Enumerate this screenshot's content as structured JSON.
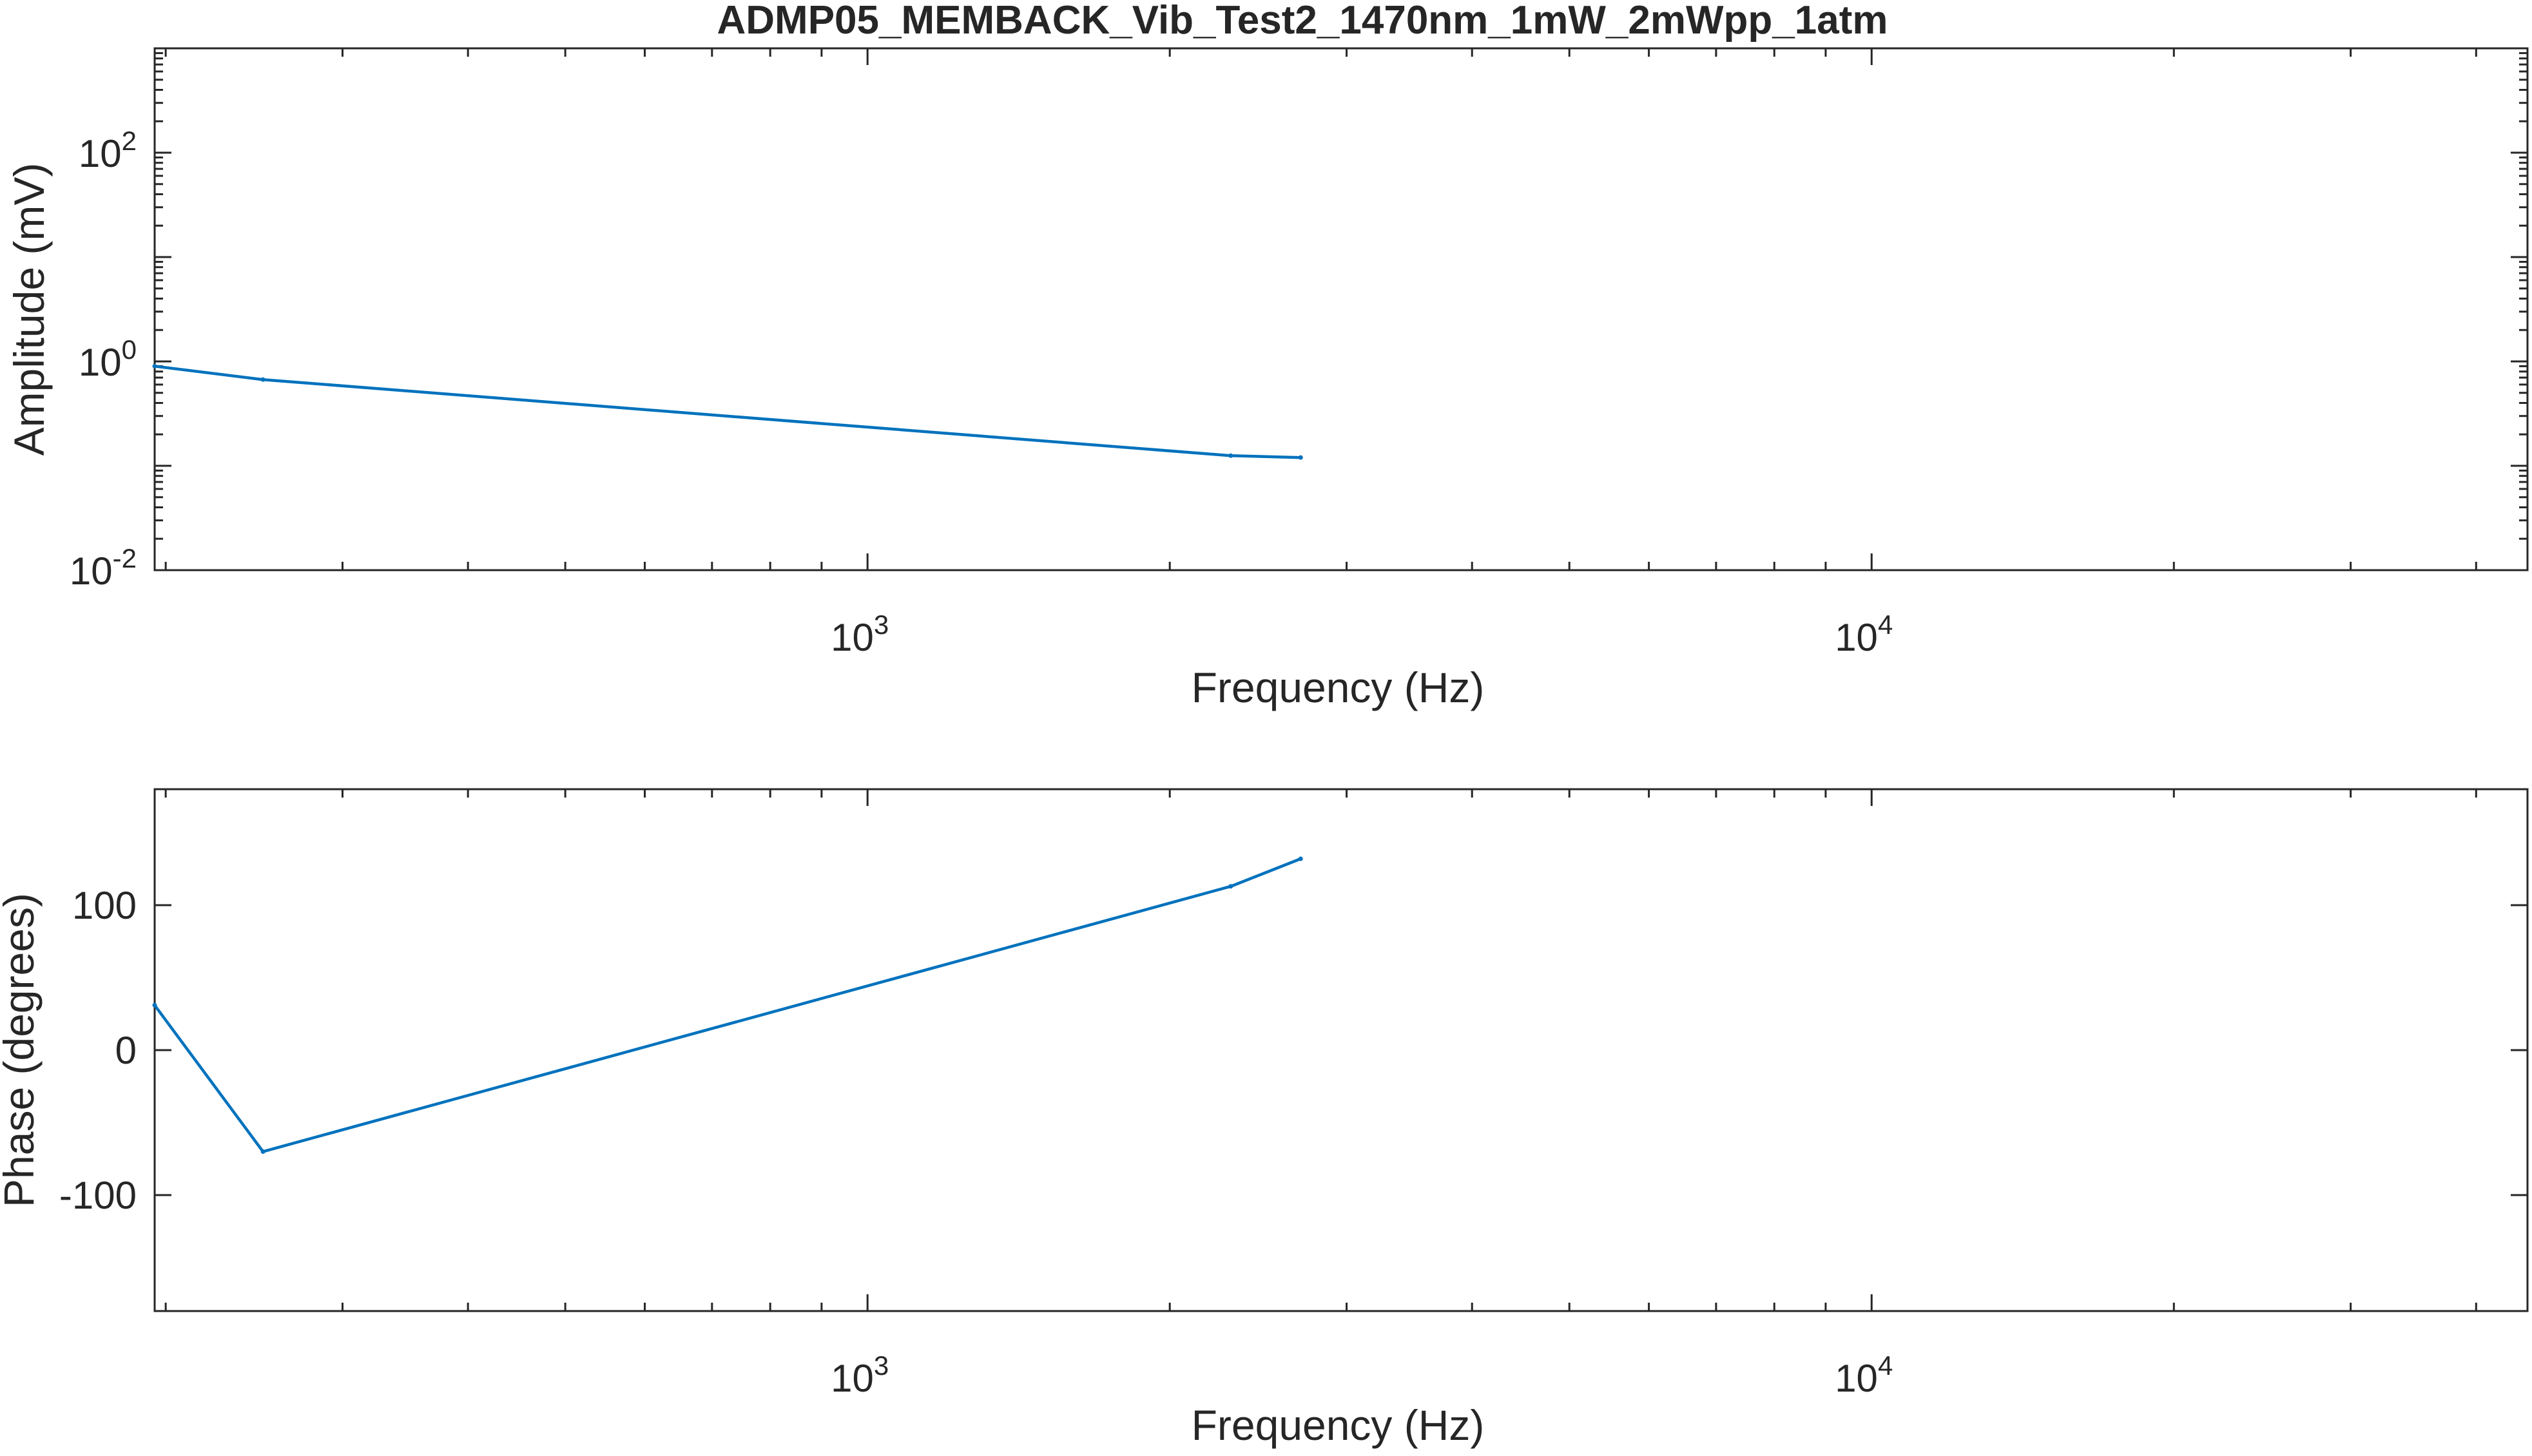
{
  "figure": {
    "title": "ADMP05_MEMBACK_Vib_Test2_1470nm_1mW_2mWpp_1atm"
  },
  "colors": {
    "series": "#0072BD",
    "axes": "#262626",
    "background": "#ffffff"
  },
  "chart_data": [
    {
      "type": "line",
      "name": "amplitude",
      "xlabel": "Frequency (Hz)",
      "ylabel": "Amplitude (mV)",
      "xscale": "log",
      "yscale": "log",
      "xlim": [
        195,
        45000
      ],
      "ylim": [
        0.01,
        1000
      ],
      "xticks": [
        {
          "value": 1000,
          "base": "10",
          "exp": "3"
        },
        {
          "value": 10000,
          "base": "10",
          "exp": "4"
        }
      ],
      "yticks": [
        {
          "value": 0.01,
          "base": "10",
          "exp": "-2"
        },
        {
          "value": 1,
          "base": "10",
          "exp": "0"
        },
        {
          "value": 100,
          "base": "10",
          "exp": "2"
        }
      ],
      "grid": false,
      "x": [
        195,
        250,
        2300,
        2700
      ],
      "y": [
        0.9,
        0.67,
        0.125,
        0.12
      ]
    },
    {
      "type": "line",
      "name": "phase",
      "xlabel": "Frequency (Hz)",
      "ylabel": "Phase (degrees)",
      "xscale": "log",
      "yscale": "linear",
      "xlim": [
        195,
        45000
      ],
      "ylim": [
        -180,
        180
      ],
      "xticks": [
        {
          "value": 1000,
          "base": "10",
          "exp": "3"
        },
        {
          "value": 10000,
          "base": "10",
          "exp": "4"
        }
      ],
      "yticks": [
        {
          "value": -100,
          "label": "-100"
        },
        {
          "value": 0,
          "label": "0"
        },
        {
          "value": 100,
          "label": "100"
        }
      ],
      "grid": false,
      "x": [
        195,
        250,
        2300,
        2700
      ],
      "y": [
        31,
        -70,
        113,
        132
      ]
    }
  ]
}
